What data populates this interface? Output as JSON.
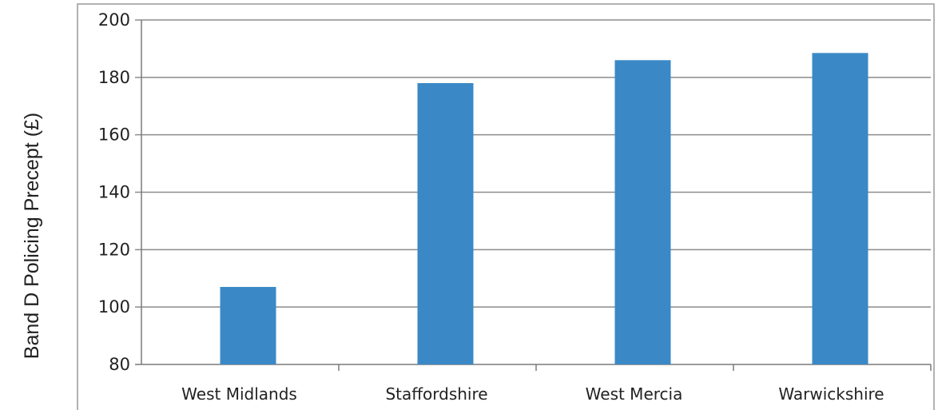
{
  "chart_data": {
    "type": "bar",
    "title": "",
    "xlabel": "",
    "ylabel": "Band D Policing Precept (£)",
    "categories": [
      "West Midlands",
      "Staffordshire",
      "West Mercia",
      "Warwickshire"
    ],
    "values": [
      107,
      178,
      186,
      188.5
    ],
    "ylim": [
      80,
      200
    ],
    "yticks": [
      80,
      100,
      120,
      140,
      160,
      180,
      200
    ],
    "grid": true,
    "legend": "none",
    "colors": {
      "bar": "#3a89c6",
      "gridline": "#8c8c8c",
      "axis": "#7a7a7a",
      "frame": "#999999"
    }
  }
}
